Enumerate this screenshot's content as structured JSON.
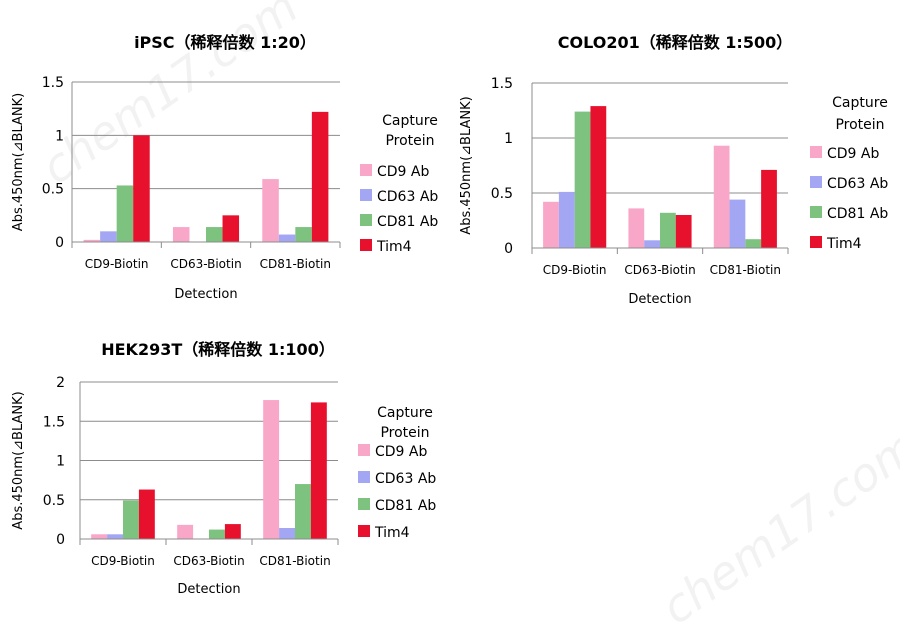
{
  "colors": {
    "CD9 Ab": "#f9a7c8",
    "CD63 Ab": "#a3a6f3",
    "CD81 Ab": "#7dc27f",
    "Tim4": "#e8112d",
    "axis": "#8c8c8c"
  },
  "watermark": "chem17.com",
  "chart_data": [
    {
      "type": "bar",
      "title": "iPSC（稀释倍数 1:20）",
      "xlabel": "Detection",
      "ylabel": "Abs.450nm(⊿BLANK)",
      "legend_title_lines": [
        "Capture",
        "Protein"
      ],
      "legend_position": "right",
      "ylim": [
        0,
        1.5
      ],
      "yticks": [
        "0",
        "0.5",
        "1",
        "1.5"
      ],
      "categories": [
        "CD9-Biotin",
        "CD63-Biotin",
        "CD81-Biotin"
      ],
      "series": [
        {
          "name": "CD9 Ab",
          "values": [
            0.02,
            0.14,
            0.59
          ]
        },
        {
          "name": "CD63 Ab",
          "values": [
            0.1,
            0.0,
            0.07
          ]
        },
        {
          "name": "CD81 Ab",
          "values": [
            0.53,
            0.14,
            0.14
          ]
        },
        {
          "name": "Tim4",
          "values": [
            1.0,
            0.25,
            1.22
          ]
        }
      ]
    },
    {
      "type": "bar",
      "title": "COLO201（稀释倍数 1:500）",
      "xlabel": "Detection",
      "ylabel": "Abs.450nm(⊿BLANK)",
      "legend_title_lines": [
        "Capture",
        "Protein"
      ],
      "legend_position": "right",
      "ylim": [
        0,
        1.5
      ],
      "yticks": [
        "0",
        "0.5",
        "1",
        "1.5"
      ],
      "categories": [
        "CD9-Biotin",
        "CD63-Biotin",
        "CD81-Biotin"
      ],
      "series": [
        {
          "name": "CD9 Ab",
          "values": [
            0.42,
            0.36,
            0.93
          ]
        },
        {
          "name": "CD63 Ab",
          "values": [
            0.51,
            0.07,
            0.44
          ]
        },
        {
          "name": "CD81 Ab",
          "values": [
            1.24,
            0.32,
            0.08
          ]
        },
        {
          "name": "Tim4",
          "values": [
            1.29,
            0.3,
            0.71
          ]
        }
      ]
    },
    {
      "type": "bar",
      "title": "HEK293T（稀释倍数 1:100）",
      "xlabel": "Detection",
      "ylabel": "Abs.450nm(⊿BLANK)",
      "legend_title_lines": [
        "Capture",
        "Protein"
      ],
      "legend_position": "right",
      "ylim": [
        0,
        2
      ],
      "yticks": [
        "0",
        "0.5",
        "1",
        "1.5",
        "2"
      ],
      "categories": [
        "CD9-Biotin",
        "CD63-Biotin",
        "CD81-Biotin"
      ],
      "series": [
        {
          "name": "CD9 Ab",
          "values": [
            0.06,
            0.18,
            1.77
          ]
        },
        {
          "name": "CD63 Ab",
          "values": [
            0.06,
            0.0,
            0.14
          ]
        },
        {
          "name": "CD81 Ab",
          "values": [
            0.49,
            0.12,
            0.7
          ]
        },
        {
          "name": "Tim4",
          "values": [
            0.63,
            0.19,
            1.74
          ]
        }
      ]
    }
  ]
}
